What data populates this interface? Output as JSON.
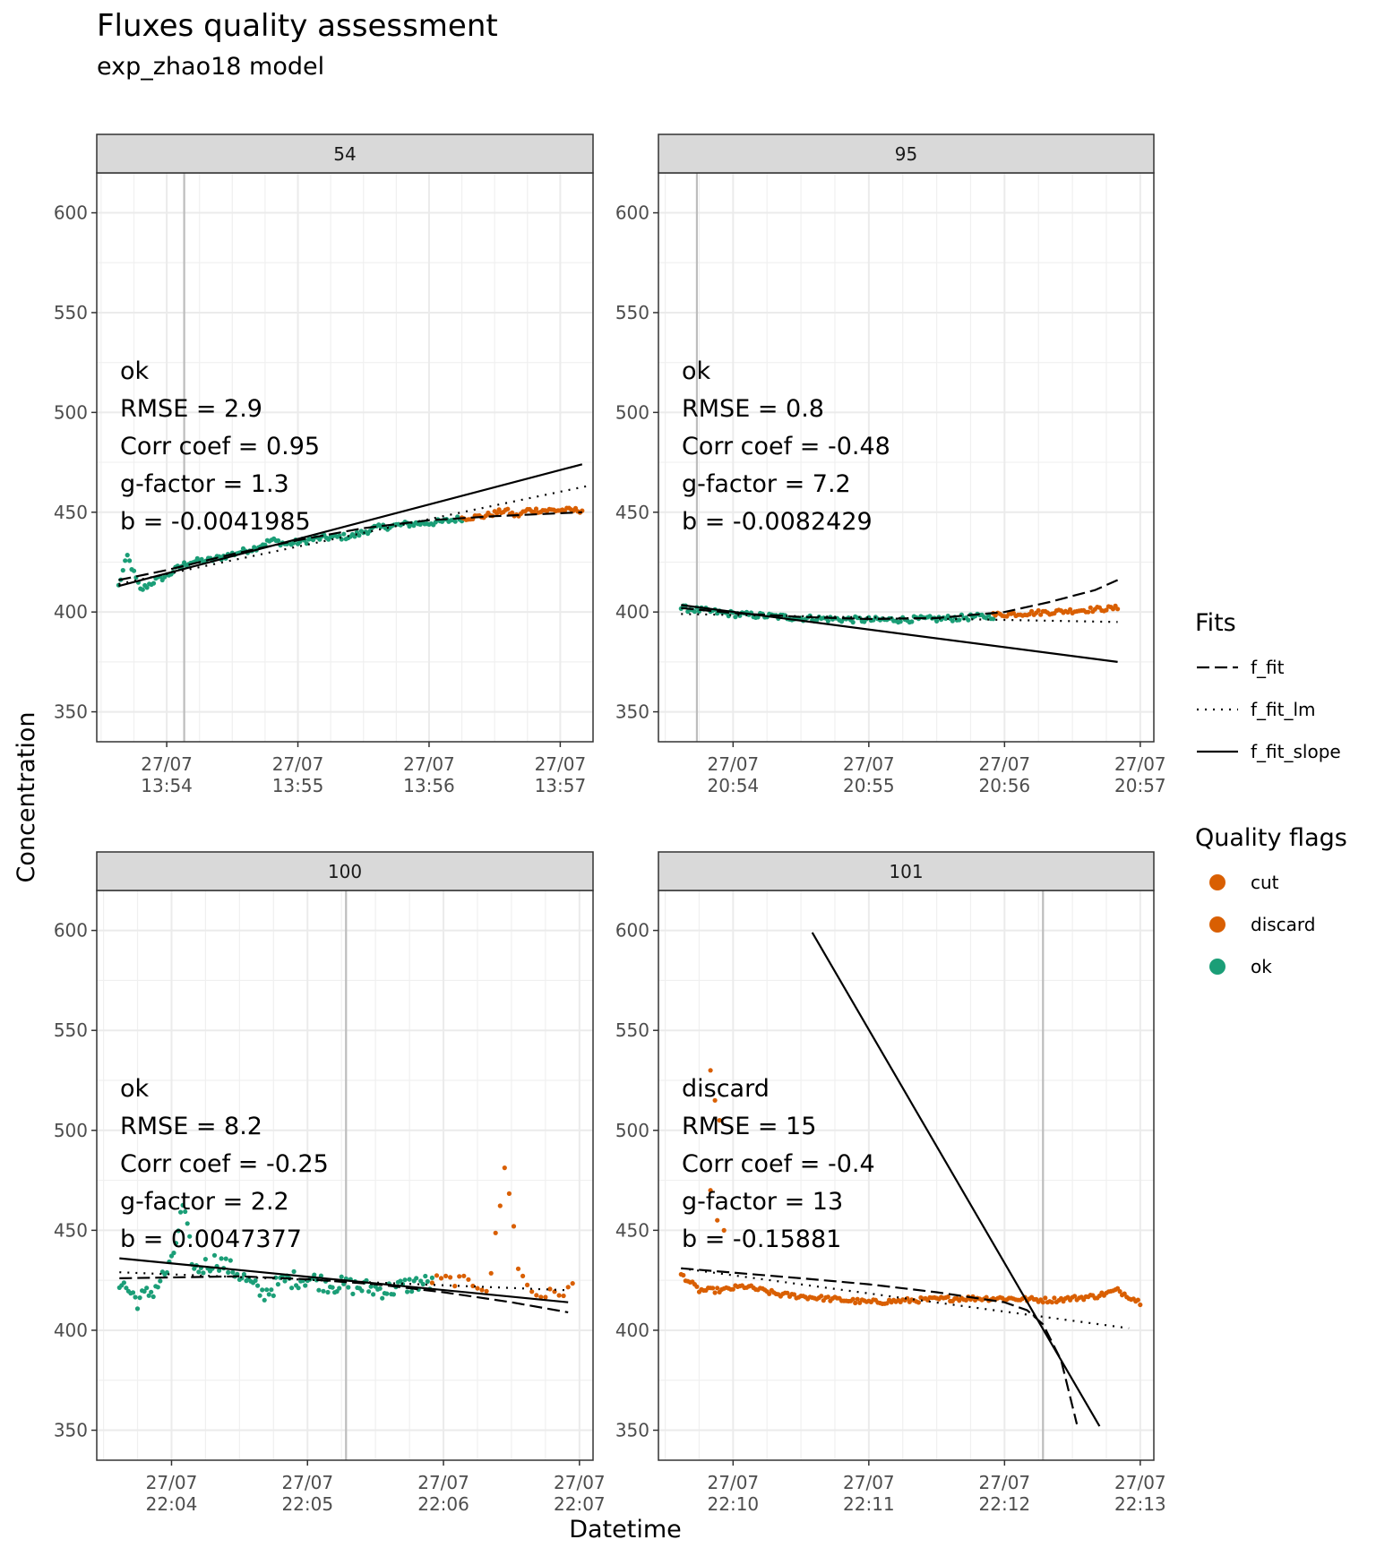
{
  "chart_data": {
    "type": "scatter",
    "title": "Fluxes quality assessment",
    "subtitle": "exp_zhao18 model",
    "xlabel": "Datetime",
    "ylabel": "Concentration",
    "ylim": [
      335,
      620
    ],
    "y_ticks": [
      350,
      400,
      450,
      500,
      550,
      600
    ],
    "grid": true,
    "legend_placement": "right",
    "legends": {
      "fits": {
        "title": "Fits",
        "items": [
          {
            "label": "f_fit",
            "style": "dashed"
          },
          {
            "label": "f_fit_lm",
            "style": "dotted"
          },
          {
            "label": "f_fit_slope",
            "style": "solid"
          }
        ]
      },
      "flags": {
        "title": "Quality flags",
        "items": [
          {
            "label": "cut",
            "color": "#D95F02"
          },
          {
            "label": "discard",
            "color": "#D95F02"
          },
          {
            "label": "ok",
            "color": "#1B9E77"
          }
        ]
      }
    },
    "panels": [
      {
        "strip": "54",
        "xlim": [
          "13:53:28",
          "13:57:15"
        ],
        "x_ticks": [
          {
            "date": "27/07",
            "time": "13:54"
          },
          {
            "date": "27/07",
            "time": "13:55"
          },
          {
            "date": "27/07",
            "time": "13:56"
          },
          {
            "date": "27/07",
            "time": "13:57"
          }
        ],
        "x_tick_times": [
          "13:54:00",
          "13:55:00",
          "13:56:00",
          "13:57:00"
        ],
        "vline": "13:54:08",
        "annotation": [
          "ok",
          "RMSE = 2.9",
          "Corr coef = 0.95",
          "g-factor = 1.3",
          "b = -0.0041985"
        ],
        "ok_profile": [
          [
            "13:53:38",
            413
          ],
          [
            "13:53:42",
            428
          ],
          [
            "13:53:48",
            411
          ],
          [
            "13:53:55",
            416
          ],
          [
            "13:54:00",
            418
          ],
          [
            "13:54:05",
            422
          ],
          [
            "13:54:10",
            425
          ],
          [
            "13:54:20",
            426
          ],
          [
            "13:54:30",
            429
          ],
          [
            "13:54:40",
            432
          ],
          [
            "13:54:48",
            436
          ],
          [
            "13:54:55",
            434
          ],
          [
            "13:55:10",
            437
          ],
          [
            "13:55:25",
            438
          ],
          [
            "13:55:35",
            442
          ],
          [
            "13:55:50",
            444
          ],
          [
            "13:56:05",
            445
          ],
          [
            "13:56:15",
            447
          ]
        ],
        "discard_profile": [
          [
            "13:56:15",
            447
          ],
          [
            "13:56:25",
            448
          ],
          [
            "13:56:35",
            451
          ],
          [
            "13:56:40",
            448
          ],
          [
            "13:56:45",
            451
          ],
          [
            "13:57:00",
            451
          ],
          [
            "13:57:10",
            451
          ]
        ],
        "f_fit": [
          [
            "13:53:38",
            416
          ],
          [
            "13:54:00",
            421
          ],
          [
            "13:54:30",
            429
          ],
          [
            "13:55:00",
            436
          ],
          [
            "13:55:30",
            442
          ],
          [
            "13:56:00",
            446
          ],
          [
            "13:56:30",
            448
          ],
          [
            "13:57:00",
            449.5
          ],
          [
            "13:57:10",
            450
          ]
        ],
        "f_fit_lm": [
          [
            "13:53:38",
            414
          ],
          [
            "13:57:12",
            463
          ]
        ],
        "f_fit_slope": [
          [
            "13:53:38",
            413
          ],
          [
            "13:57:10",
            474
          ]
        ]
      },
      {
        "strip": "95",
        "xlim": [
          "20:53:27",
          "20:57:06"
        ],
        "x_ticks": [
          {
            "date": "27/07",
            "time": "20:54"
          },
          {
            "date": "27/07",
            "time": "20:55"
          },
          {
            "date": "27/07",
            "time": "20:56"
          },
          {
            "date": "27/07",
            "time": "20:57"
          }
        ],
        "x_tick_times": [
          "20:54:00",
          "20:55:00",
          "20:56:00",
          "20:57:00"
        ],
        "vline": "20:53:44",
        "annotation": [
          "ok",
          "RMSE = 0.8",
          "Corr coef = -0.48",
          "g-factor = 7.2",
          "b = -0.0082429"
        ],
        "ok_profile": [
          [
            "20:53:37",
            402
          ],
          [
            "20:54:00",
            399
          ],
          [
            "20:54:30",
            397
          ],
          [
            "20:55:00",
            396
          ],
          [
            "20:55:30",
            396.5
          ],
          [
            "20:55:55",
            398
          ]
        ],
        "discard_profile": [
          [
            "20:55:55",
            398.5
          ],
          [
            "20:56:20",
            400
          ],
          [
            "20:56:50",
            402
          ]
        ],
        "f_fit": [
          [
            "20:53:37",
            402
          ],
          [
            "20:54:00",
            399.5
          ],
          [
            "20:54:30",
            397.5
          ],
          [
            "20:55:00",
            396.5
          ],
          [
            "20:55:30",
            397
          ],
          [
            "20:56:00",
            400
          ],
          [
            "20:56:20",
            405
          ],
          [
            "20:56:40",
            411
          ],
          [
            "20:56:50",
            416
          ]
        ],
        "f_fit_lm": [
          [
            "20:53:37",
            399
          ],
          [
            "20:56:50",
            395
          ]
        ],
        "f_fit_slope": [
          [
            "20:53:37",
            403.5
          ],
          [
            "20:56:50",
            375
          ]
        ]
      },
      {
        "strip": "100",
        "xlim": [
          "22:03:27",
          "22:07:06"
        ],
        "x_ticks": [
          {
            "date": "27/07",
            "time": "22:04"
          },
          {
            "date": "27/07",
            "time": "22:05"
          },
          {
            "date": "27/07",
            "time": "22:06"
          },
          {
            "date": "27/07",
            "time": "22:07"
          }
        ],
        "x_tick_times": [
          "22:04:00",
          "22:05:00",
          "22:06:00",
          "22:07:00"
        ],
        "vline": "22:05:17",
        "annotation": [
          "ok",
          "RMSE = 8.2",
          "Corr coef = -0.25",
          "g-factor = 2.2",
          "b = 0.0047377"
        ],
        "ok_profile": [
          [
            "22:03:37",
            425
          ],
          [
            "22:03:45",
            415
          ],
          [
            "22:03:52",
            420
          ],
          [
            "22:04:00",
            433
          ],
          [
            "22:04:05",
            462
          ],
          [
            "22:04:10",
            430
          ],
          [
            "22:04:20",
            435
          ],
          [
            "22:04:30",
            428
          ],
          [
            "22:04:40",
            418
          ],
          [
            "22:04:50",
            425
          ],
          [
            "22:05:00",
            426
          ],
          [
            "22:05:10",
            423
          ],
          [
            "22:05:20",
            422
          ],
          [
            "22:05:35",
            420
          ],
          [
            "22:05:50",
            424
          ],
          [
            "22:05:55",
            423
          ]
        ],
        "discard_profile": [
          [
            "22:05:55",
            425
          ],
          [
            "22:06:05",
            425
          ],
          [
            "22:06:15",
            423
          ],
          [
            "22:06:20",
            421
          ],
          [
            "22:06:27",
            480
          ],
          [
            "22:06:30",
            465
          ],
          [
            "22:06:33",
            430
          ],
          [
            "22:06:40",
            418
          ],
          [
            "22:06:50",
            418
          ],
          [
            "22:06:58",
            422
          ]
        ],
        "f_fit": [
          [
            "22:03:37",
            426
          ],
          [
            "22:04:30",
            427
          ],
          [
            "22:05:00",
            425.5
          ],
          [
            "22:05:30",
            423
          ],
          [
            "22:06:00",
            419
          ],
          [
            "22:06:30",
            414
          ],
          [
            "22:06:55",
            409
          ]
        ],
        "f_fit_lm": [
          [
            "22:03:37",
            429
          ],
          [
            "22:06:55",
            420
          ]
        ],
        "f_fit_slope": [
          [
            "22:03:37",
            436
          ],
          [
            "22:06:55",
            414
          ]
        ]
      },
      {
        "strip": "101",
        "xlim": [
          "22:09:27",
          "22:13:06"
        ],
        "x_ticks": [
          {
            "date": "27/07",
            "time": "22:10"
          },
          {
            "date": "27/07",
            "time": "22:11"
          },
          {
            "date": "27/07",
            "time": "22:12"
          },
          {
            "date": "27/07",
            "time": "22:13"
          }
        ],
        "x_tick_times": [
          "22:10:00",
          "22:11:00",
          "22:12:00",
          "22:13:00"
        ],
        "vline": "22:12:17",
        "annotation": [
          "discard",
          "RMSE = 15",
          "Corr coef = -0.4",
          "g-factor = 13",
          "b = -0.15881"
        ],
        "ok_profile": [],
        "discard_profile": [
          [
            "22:09:37",
            428
          ],
          [
            "22:09:45",
            420
          ],
          [
            "22:09:55",
            420
          ],
          [
            "22:10:05",
            422
          ],
          [
            "22:10:20",
            418
          ],
          [
            "22:10:40",
            416
          ],
          [
            "22:11:00",
            414
          ],
          [
            "22:11:20",
            415
          ],
          [
            "22:11:40",
            416
          ],
          [
            "22:12:00",
            416
          ],
          [
            "22:12:20",
            415
          ],
          [
            "22:12:40",
            417
          ],
          [
            "22:12:50",
            420
          ],
          [
            "22:13:00",
            414
          ]
        ],
        "discard_spike": [
          [
            "22:09:50",
            530
          ],
          [
            "22:09:52",
            515
          ],
          [
            "22:09:54",
            505
          ],
          [
            "22:09:50",
            470
          ],
          [
            "22:09:53",
            455
          ],
          [
            "22:09:56",
            450
          ]
        ],
        "f_fit": [
          [
            "22:09:37",
            431
          ],
          [
            "22:10:30",
            426
          ],
          [
            "22:11:00",
            423
          ],
          [
            "22:11:30",
            419
          ],
          [
            "22:12:00",
            414
          ],
          [
            "22:12:10",
            410
          ],
          [
            "22:12:17",
            403
          ],
          [
            "22:12:25",
            385
          ],
          [
            "22:12:32",
            353
          ]
        ],
        "f_fit_lm": [
          [
            "22:09:37",
            431
          ],
          [
            "22:12:55",
            401
          ]
        ],
        "f_fit_slope": [
          [
            "22:10:35",
            599
          ],
          [
            "22:12:42",
            352
          ]
        ]
      }
    ]
  }
}
